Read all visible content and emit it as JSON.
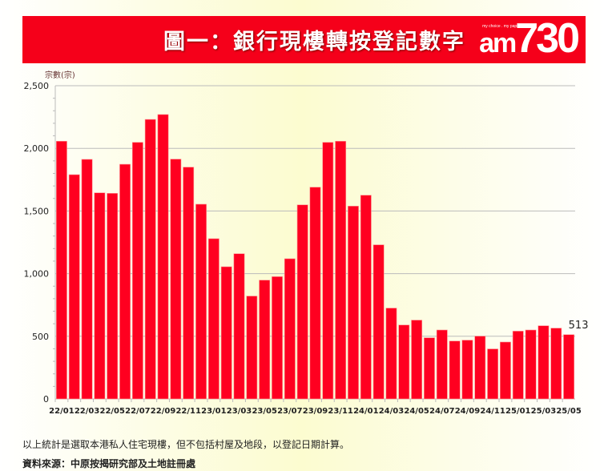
{
  "header": {
    "title": "圖一：銀行現樓轉按登記數字",
    "logo": "am730",
    "logo_tagline": "my choice . my paper"
  },
  "colors": {
    "banner": "#f5001a",
    "bar": "#ff0020",
    "grid": "#bbbbbb"
  },
  "chart_data": {
    "type": "bar",
    "title": "圖一：銀行現樓轉按登記數字",
    "ylabel": "宗數(宗)",
    "xlabel": "",
    "ylim": [
      0,
      2500
    ],
    "yticks": [
      0,
      500,
      1000,
      1500,
      2000,
      2500
    ],
    "ytick_labels": [
      "0",
      "500",
      "1,000",
      "1,500",
      "2,000",
      "2,500"
    ],
    "grid": true,
    "categories": [
      "22/01",
      "22/02",
      "22/03",
      "22/04",
      "22/05",
      "22/06",
      "22/07",
      "22/08",
      "22/09",
      "22/10",
      "22/11",
      "22/12",
      "23/01",
      "23/02",
      "23/03",
      "23/04",
      "23/05",
      "23/06",
      "23/07",
      "23/08",
      "23/09",
      "23/10",
      "23/11",
      "23/12",
      "24/01",
      "24/02",
      "24/03",
      "24/04",
      "24/05",
      "24/06",
      "24/07",
      "24/08",
      "24/09",
      "24/10",
      "24/11",
      "24/12",
      "25/01",
      "25/02",
      "25/03",
      "25/04",
      "25/05"
    ],
    "xtick_labels": [
      "22/01",
      "22/03",
      "22/05",
      "22/07",
      "22/09",
      "22/11",
      "23/01",
      "23/03",
      "23/05",
      "23/07",
      "23/09",
      "23/11",
      "24/01",
      "24/03",
      "24/05",
      "24/07",
      "24/09",
      "24/11",
      "25/01",
      "25/03",
      "25/05"
    ],
    "values": [
      2057,
      1790,
      1912,
      1645,
      1641,
      1873,
      2048,
      2231,
      2270,
      1914,
      1850,
      1554,
      1279,
      1055,
      1159,
      821,
      948,
      976,
      1119,
      1549,
      1690,
      2048,
      2057,
      1539,
      1626,
      1230,
      725,
      590,
      629,
      488,
      550,
      462,
      469,
      501,
      399,
      454,
      541,
      550,
      584,
      565,
      513
    ],
    "annotations": [
      {
        "category": "25/05",
        "text": "513"
      }
    ]
  },
  "footer": {
    "note": "以上統計是選取本港私人住宅現樓，但不包括村屋及地段，以登記日期計算。",
    "source": "資料來源：中原按揭研究部及土地註冊處"
  }
}
